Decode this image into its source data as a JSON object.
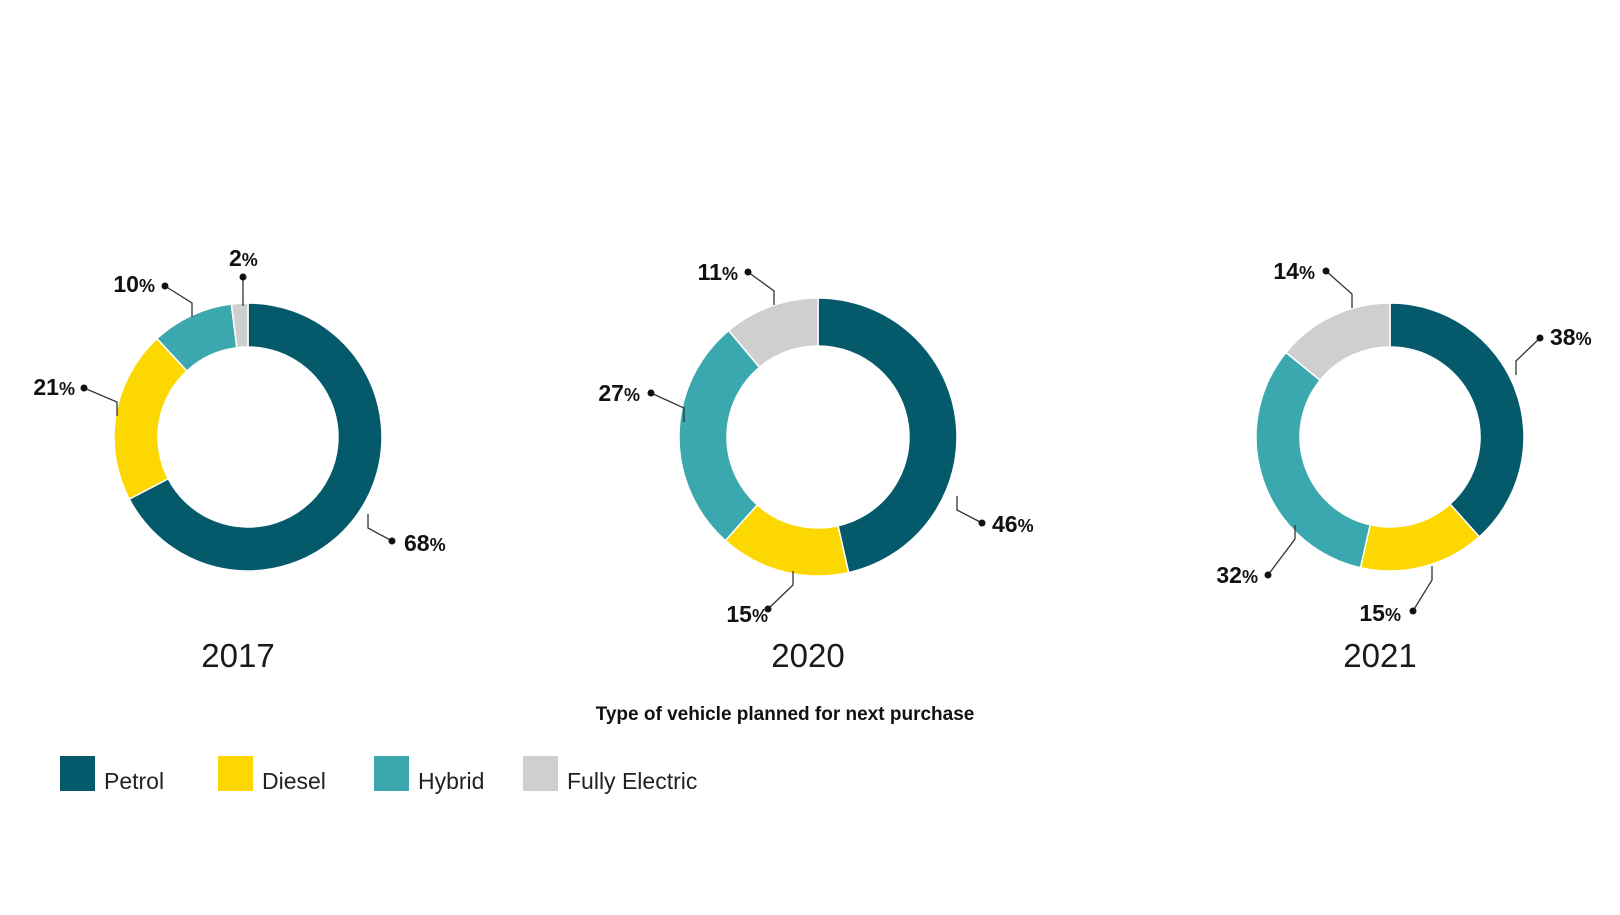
{
  "chart_data": {
    "type": "pie",
    "title": "",
    "subtitle": "Type of vehicle planned for next purchase",
    "categories": [
      "Petrol",
      "Diesel",
      "Hybrid",
      "Fully Electric"
    ],
    "colors": [
      "#045a6b",
      "#fdd700",
      "#3aa8ae",
      "#cfcfcf"
    ],
    "legend_position": "bottom-left",
    "value_suffix": "%",
    "charts": [
      {
        "label": "2017",
        "values": [
          68,
          21,
          10,
          2
        ]
      },
      {
        "label": "2020",
        "values": [
          46,
          15,
          27,
          11
        ]
      },
      {
        "label": "2021",
        "values": [
          38,
          15,
          32,
          14
        ]
      }
    ]
  }
}
